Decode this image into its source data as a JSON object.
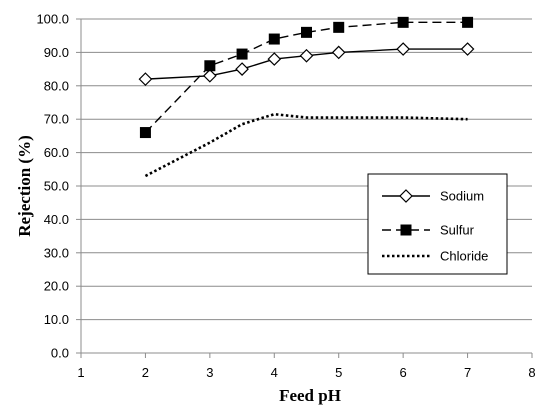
{
  "chart_data": {
    "type": "line",
    "title": "",
    "xlabel": "Feed pH",
    "ylabel": "Rejection (%)",
    "xlim": [
      1,
      8
    ],
    "ylim": [
      0,
      100
    ],
    "x_ticks": [
      "1",
      "2",
      "3",
      "4",
      "5",
      "6",
      "7",
      "8"
    ],
    "y_ticks": [
      "0.0",
      "10.0",
      "20.0",
      "30.0",
      "40.0",
      "50.0",
      "60.0",
      "70.0",
      "80.0",
      "90.0",
      "100.0"
    ],
    "grid": "horizontal",
    "legend_position": "lower-right",
    "series": [
      {
        "name": "Sodium",
        "line_style": "solid",
        "marker": "open-diamond",
        "x": [
          2,
          3,
          3.5,
          4,
          4.5,
          5,
          6,
          7
        ],
        "y": [
          82.0,
          83.0,
          85.0,
          88.0,
          89.0,
          90.0,
          91.0,
          91.0
        ]
      },
      {
        "name": "Sulfur",
        "line_style": "dashed",
        "marker": "filled-square",
        "x": [
          2,
          3,
          3.5,
          4,
          4.5,
          5,
          6,
          7
        ],
        "y": [
          66.0,
          86.0,
          89.5,
          94.0,
          96.0,
          97.5,
          99.0,
          99.0
        ]
      },
      {
        "name": "Chloride",
        "line_style": "dotted",
        "marker": "none",
        "x": [
          2,
          3,
          3.5,
          4,
          4.5,
          5,
          6,
          7
        ],
        "y": [
          53.0,
          63.0,
          68.5,
          71.5,
          70.5,
          70.5,
          70.5,
          70.0
        ]
      }
    ]
  }
}
